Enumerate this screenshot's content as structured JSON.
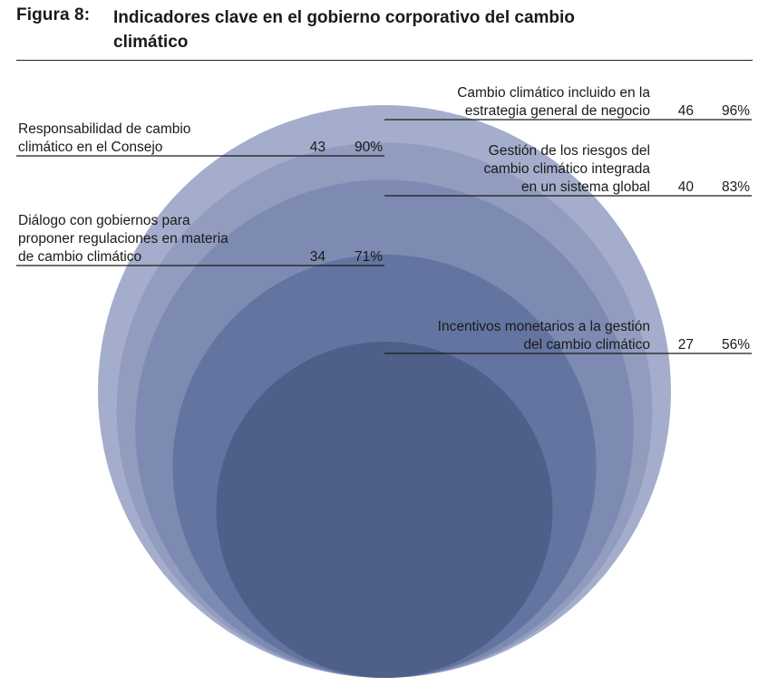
{
  "figure": {
    "number": "Figura 8:",
    "title": "Indicadores clave en el gobierno corporativo del cambio climático"
  },
  "chart_data": {
    "type": "nested-circles",
    "categories": [
      "Cambio climático incluido en la estrategia general de negocio",
      "Responsabilidad de cambio climático en el Consejo",
      "Gestión de los riesgos del cambio climático integrada en un sistema global",
      "Diálogo con gobiernos para proponer regulaciones en materia de cambio climático",
      "Incentivos monetarios a la gestión del cambio climático"
    ],
    "values": [
      46,
      43,
      40,
      34,
      27
    ],
    "percent_labels": [
      "96%",
      "90%",
      "83%",
      "71%",
      "56%"
    ],
    "label_lines": [
      [
        "Cambio climático incluido en la",
        "estrategia general de negocio"
      ],
      [
        "Responsabilidad de cambio",
        "climático en el Consejo"
      ],
      [
        "Gestión de los riesgos del",
        "cambio climático integrada",
        "en un sistema global"
      ],
      [
        "Diálogo con gobiernos para",
        "proponer regulaciones en materia",
        "de cambio climático"
      ],
      [
        "Incentivos monetarios a la gestión",
        "del cambio climático"
      ]
    ],
    "label_side": [
      "right",
      "left",
      "right",
      "left",
      "right"
    ],
    "colors": [
      "#a5adcc",
      "#919cbf",
      "#7d8ab2",
      "#6474a0",
      "#4e6089"
    ]
  }
}
